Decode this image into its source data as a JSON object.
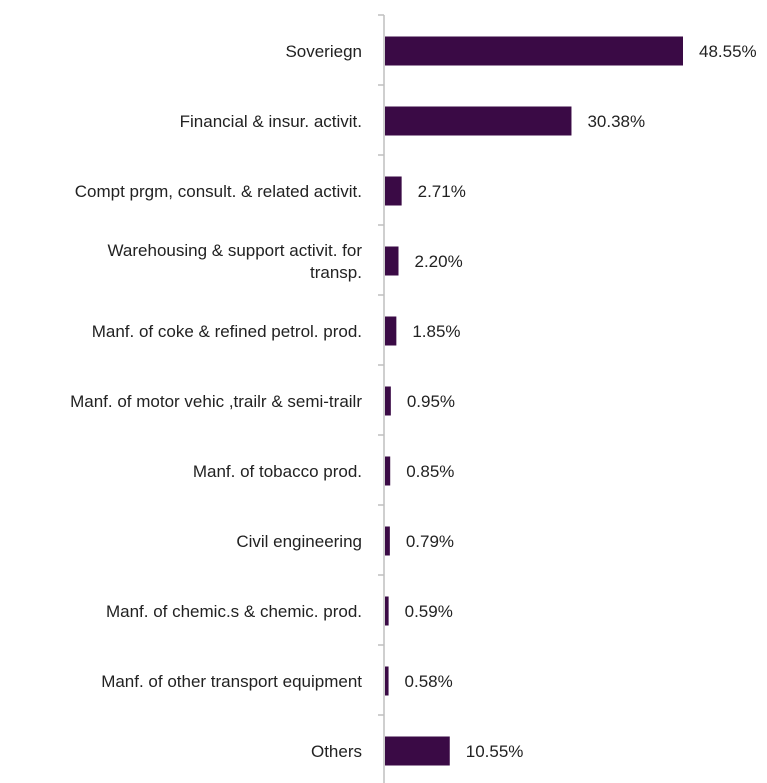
{
  "colors": {
    "bar": "#3a0a45",
    "axis": "#bfbfbf",
    "text": "#222222"
  },
  "chart_data": {
    "type": "bar",
    "orientation": "horizontal",
    "title": "",
    "xlabel": "",
    "ylabel": "",
    "grid": false,
    "categories": [
      [
        "Soveriegn"
      ],
      [
        "Financial & insur. activit."
      ],
      [
        "Compt prgm, consult. & related activit."
      ],
      [
        "Warehousing & support activit. for",
        "transp."
      ],
      [
        "Manf. of coke & refined petrol. prod."
      ],
      [
        "Manf. of motor vehic ,trailr & semi-trailr"
      ],
      [
        "Manf. of tobacco prod."
      ],
      [
        "Civil engineering"
      ],
      [
        "Manf. of chemic.s & chemic. prod."
      ],
      [
        "Manf. of other transport equipment"
      ],
      [
        "Others"
      ]
    ],
    "values": [
      48.55,
      30.38,
      2.71,
      2.2,
      1.85,
      0.95,
      0.85,
      0.79,
      0.59,
      0.58,
      10.55
    ],
    "value_labels": [
      "48.55%",
      "30.38%",
      "2.71%",
      "2.20%",
      "1.85%",
      "0.95%",
      "0.85%",
      "0.79%",
      "0.59%",
      "0.58%",
      "10.55%"
    ],
    "xlim": [
      0,
      50
    ]
  }
}
